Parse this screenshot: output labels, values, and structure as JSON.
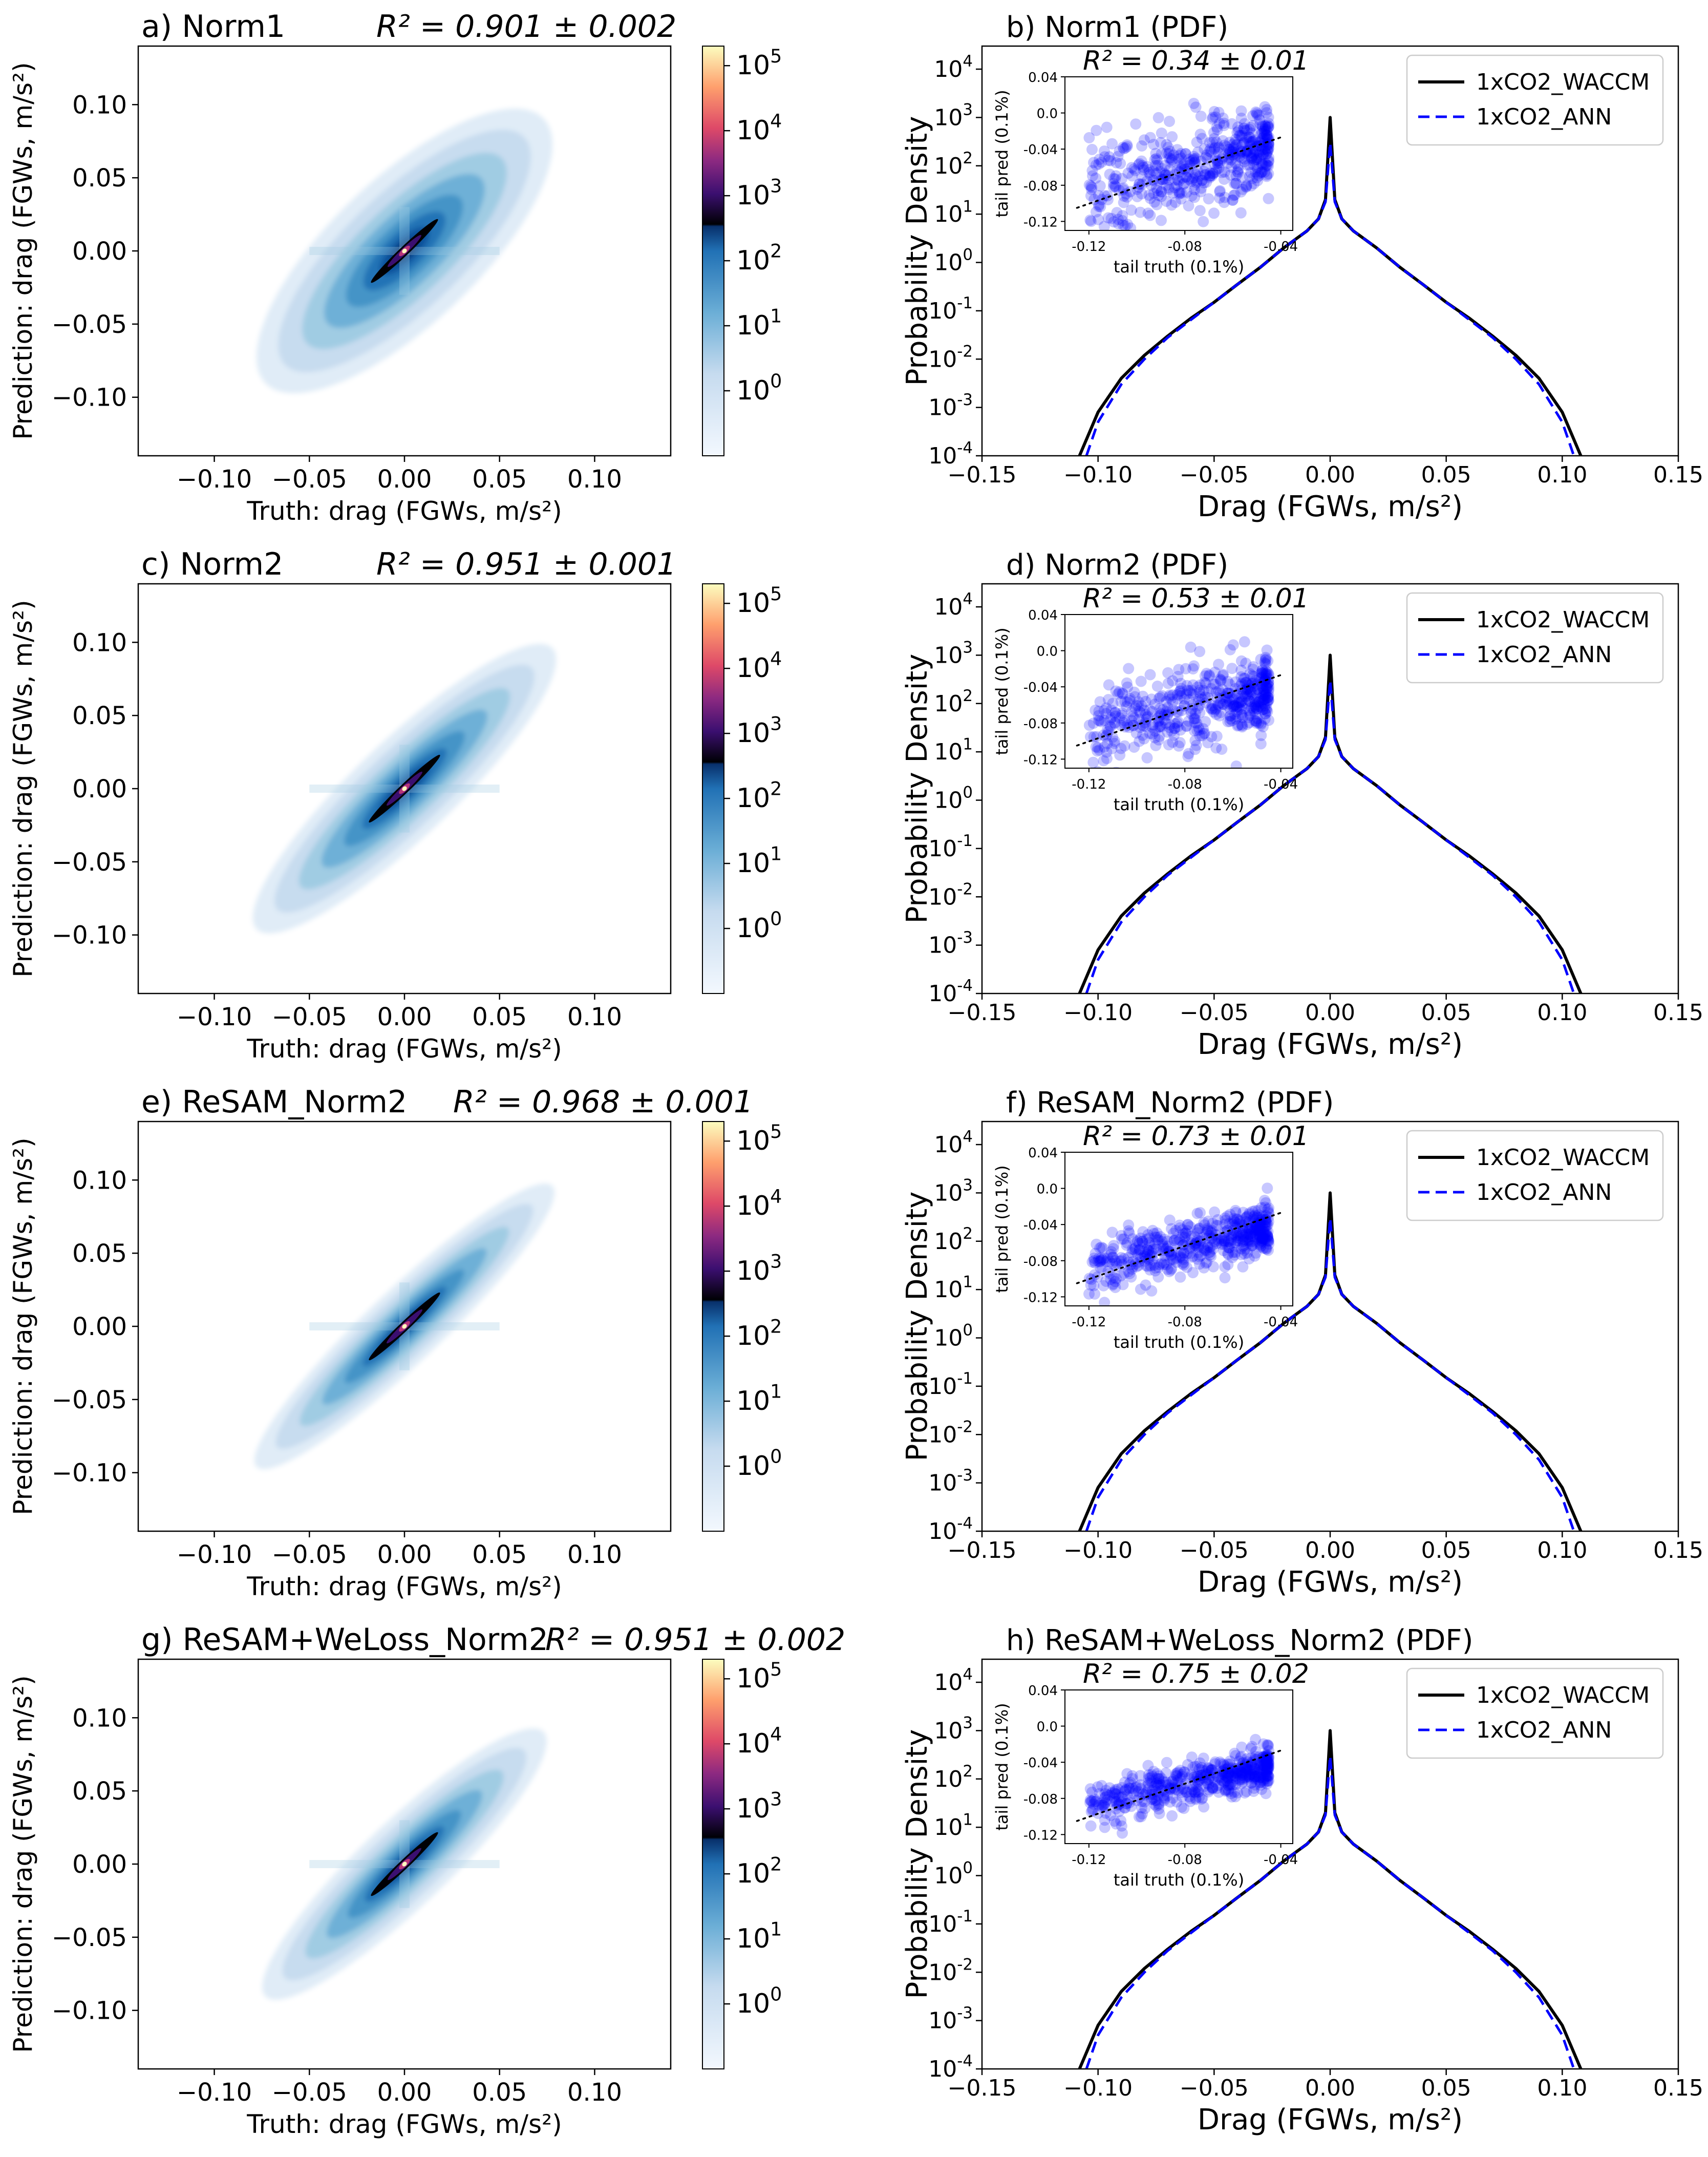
{
  "figure": {
    "density_xlabel": "Truth: drag (FGWs, m/s²)",
    "density_ylabel": "Prediction: drag (FGWs, m/s²)",
    "density_xticks": [
      "−0.10",
      "−0.05",
      "0.00",
      "0.05",
      "0.10"
    ],
    "density_yticks": [
      "0.10",
      "0.05",
      "0.00",
      "−0.05",
      "−0.10"
    ],
    "colorbar_ticks": [
      "10^5",
      "10^4",
      "10^3",
      "10^2",
      "10^1",
      "10^0"
    ],
    "pdf_xlabel": "Drag (FGWs, m/s²)",
    "pdf_ylabel": "Probability Density",
    "pdf_xticks": [
      "−0.15",
      "−0.10",
      "−0.05",
      "0.00",
      "0.05",
      "0.10",
      "0.15"
    ],
    "pdf_yticks": [
      "10^4",
      "10^3",
      "10^2",
      "10^1",
      "10^0",
      "10^-1",
      "10^-2",
      "10^-3",
      "10^-4"
    ],
    "legend": [
      "1xCO2_WACCM",
      "1xCO2_ANN"
    ],
    "inset_xlabel": "tail truth (0.1%)",
    "inset_ylabel": "tail pred  (0.1%)",
    "inset_xticks": [
      "-0.12",
      "-0.08",
      "-0.04"
    ],
    "inset_yticks": [
      "0.04",
      "0.0",
      "-0.04",
      "-0.08",
      "-0.12"
    ]
  },
  "panels": [
    {
      "title": "a) Norm1",
      "r2": "R² = 0.901 ± 0.002",
      "pdf_title": "b) Norm1 (PDF)",
      "pdf_r2": "R² = 0.34 ± 0.01"
    },
    {
      "title": "c) Norm2",
      "r2": "R² = 0.951 ± 0.001",
      "pdf_title": "d) Norm2 (PDF)",
      "pdf_r2": "R² = 0.53 ± 0.01"
    },
    {
      "title": "e) ReSAM_Norm2",
      "r2": "R² = 0.968 ± 0.001",
      "pdf_title": "f) ReSAM_Norm2 (PDF)",
      "pdf_r2": "R² = 0.73 ± 0.01"
    },
    {
      "title": "g) ReSAM+WeLoss_Norm2",
      "r2": "R² = 0.951 ± 0.002",
      "pdf_title": "h) ReSAM+WeLoss_Norm2 (PDF)",
      "pdf_r2": "R² = 0.75 ± 0.02"
    }
  ],
  "chart_data": [
    {
      "type": "heatmap",
      "panels": [
        "a) Norm1",
        "c) Norm2",
        "e) ReSAM_Norm2",
        "g) ReSAM+WeLoss_Norm2"
      ],
      "r2": [
        "0.901 ± 0.002",
        "0.951 ± 0.001",
        "0.968 ± 0.001",
        "0.951 ± 0.002"
      ],
      "xlabel": "Truth: drag (FGWs, m/s²)",
      "ylabel": "Prediction: drag (FGWs, m/s²)",
      "xlim": [
        -0.14,
        0.14
      ],
      "ylim": [
        -0.14,
        0.14
      ],
      "colorbar": {
        "scale": "log",
        "range": [
          0.1,
          200000
        ],
        "ticks": [
          1,
          10,
          100,
          1000,
          10000,
          100000
        ],
        "colormap": "Blues (below 10^2), inferno (above 10^2)"
      },
      "density_spread": [
        0.012,
        0.008,
        0.006,
        0.007
      ],
      "density_extent": [
        0.08,
        0.085,
        0.085,
        0.08
      ]
    },
    {
      "type": "line",
      "panels": [
        "b) Norm1 (PDF)",
        "d) Norm2 (PDF)",
        "f) ReSAM_Norm2 (PDF)",
        "h) ReSAM+WeLoss_Norm2 (PDF)"
      ],
      "xlabel": "Drag (FGWs, m/s²)",
      "ylabel": "Probability Density",
      "xlim": [
        -0.15,
        0.15
      ],
      "ylim": [
        0.0001,
        30000
      ],
      "yscale": "log",
      "series": [
        {
          "name": "1xCO2_WACCM",
          "style": "solid",
          "color": "#000000",
          "x": [
            -0.108,
            -0.1,
            -0.09,
            -0.08,
            -0.07,
            -0.06,
            -0.05,
            -0.04,
            -0.03,
            -0.02,
            -0.01,
            -0.005,
            -0.002,
            0.0,
            0.002,
            0.005,
            0.01,
            0.02,
            0.03,
            0.04,
            0.05,
            0.06,
            0.07,
            0.08,
            0.09,
            0.1,
            0.108
          ],
          "y": [
            0.0001,
            0.0008,
            0.004,
            0.012,
            0.03,
            0.07,
            0.15,
            0.35,
            0.8,
            2.0,
            4.5,
            8,
            20,
            1000,
            20,
            8,
            4.5,
            2.0,
            0.8,
            0.35,
            0.15,
            0.07,
            0.03,
            0.012,
            0.004,
            0.0008,
            0.0001
          ]
        },
        {
          "name": "1xCO2_ANN",
          "style": "dashed",
          "color": "#0000ff",
          "x": [
            -0.105,
            -0.1,
            -0.09,
            -0.08,
            -0.07,
            -0.06,
            -0.05,
            -0.04,
            -0.03,
            -0.02,
            -0.01,
            -0.005,
            -0.002,
            0.0,
            0.002,
            0.005,
            0.01,
            0.02,
            0.03,
            0.04,
            0.05,
            0.06,
            0.07,
            0.08,
            0.09,
            0.1,
            0.105
          ],
          "y": [
            0.0001,
            0.0005,
            0.003,
            0.01,
            0.028,
            0.065,
            0.15,
            0.35,
            0.8,
            2.0,
            4.5,
            8,
            18,
            300,
            18,
            8,
            4.5,
            2.0,
            0.8,
            0.35,
            0.15,
            0.065,
            0.028,
            0.01,
            0.003,
            0.0005,
            0.0001
          ]
        }
      ],
      "tail_scatter": {
        "xlabel": "tail truth (0.1%)",
        "ylabel": "tail pred  (0.1%)",
        "xlim": [
          -0.13,
          -0.035
        ],
        "ylim": [
          -0.13,
          0.04
        ],
        "r2": [
          "0.34 ± 0.01",
          "0.53 ± 0.01",
          "0.73 ± 0.01",
          "0.75 ± 0.02"
        ],
        "color": "#0000ff"
      }
    }
  ]
}
